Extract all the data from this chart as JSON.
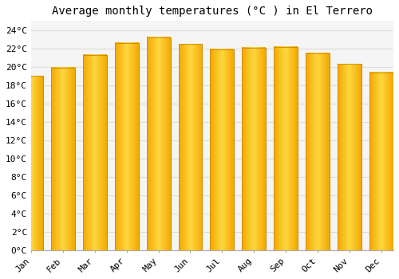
{
  "title": "Average monthly temperatures (°C ) in El Terrero",
  "months": [
    "Jan",
    "Feb",
    "Mar",
    "Apr",
    "May",
    "Jun",
    "Jul",
    "Aug",
    "Sep",
    "Oct",
    "Nov",
    "Dec"
  ],
  "values": [
    19.0,
    19.9,
    21.3,
    22.6,
    23.2,
    22.5,
    21.9,
    22.1,
    22.2,
    21.5,
    20.3,
    19.4
  ],
  "bar_color_left": "#F5A800",
  "bar_color_center": "#FFD740",
  "bar_color_right": "#E59400",
  "background_color": "#FFFFFF",
  "plot_bg_color": "#F5F5F5",
  "grid_color": "#DDDDDD",
  "ylim": [
    0,
    25
  ],
  "ytick_step": 2,
  "title_fontsize": 10,
  "tick_fontsize": 8,
  "font_family": "monospace"
}
